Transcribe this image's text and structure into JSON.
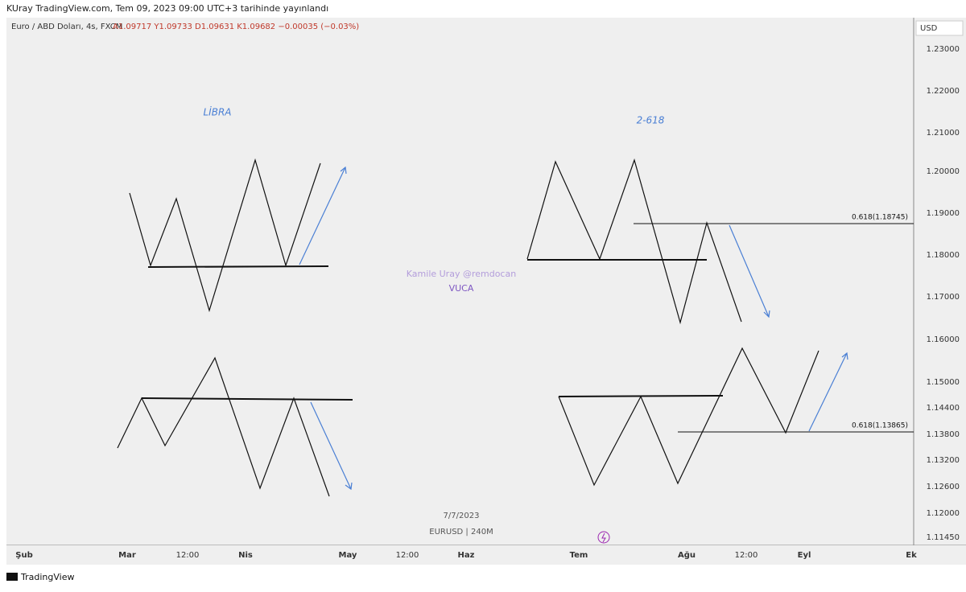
{
  "header": {
    "published": "KUray TradingView.com, Tem 09, 2023 09:00 UTC+3 tarihinde yayınlandı"
  },
  "symbol": {
    "name": "Euro / ABD Doları, 4s, FXCM",
    "ohlc": "A1.09717  Y1.09733  D1.09631  K1.09682  −0.00035 (−0.03%)"
  },
  "price_axis": {
    "currency": "USD",
    "ticks": [
      "1.23000",
      "1.22000",
      "1.21000",
      "1.20000",
      "1.19000",
      "1.18000",
      "1.17000",
      "1.16000",
      "1.15000",
      "1.14400",
      "1.13800",
      "1.13200",
      "1.12600",
      "1.12000",
      "1.11450"
    ]
  },
  "time_axis": {
    "labels": [
      "Şub",
      "Mar",
      "12:00",
      "Nis",
      "May",
      "12:00",
      "Haz",
      "Tem",
      "Ağu",
      "12:00",
      "Eyl",
      "Ek"
    ]
  },
  "annotations": {
    "libra": "LİBRA",
    "two_618": "2-618",
    "fib_upper": "0.618(1.18745)",
    "fib_lower": "0.618(1.13865)",
    "author": "Kamile Uray @remdocan",
    "vuca": "VUCA",
    "date": "7/7/2023",
    "symbol_tf": "EURUSD | 240M"
  },
  "footer": {
    "brand": "TradingView"
  }
}
